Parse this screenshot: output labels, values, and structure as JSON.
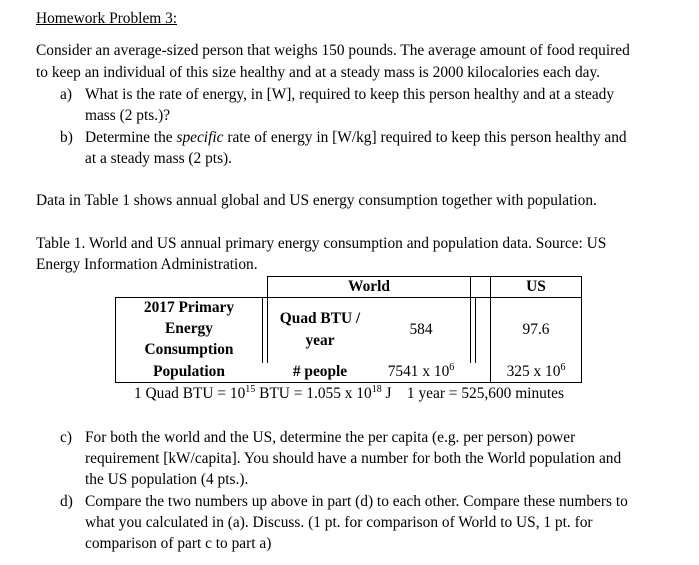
{
  "title": "Homework Problem 3:",
  "intro": {
    "line1": "Consider an average-sized person that weighs 150 pounds.  The average amount of food required",
    "line2": "to keep an individual of this size healthy and at a steady mass is 2000 kilocalories each day."
  },
  "part_a": {
    "letter": "a)",
    "line1": "What is the rate of energy, in [W], required to keep this person healthy and at a steady",
    "line2": "mass (2 pts.)?"
  },
  "part_b": {
    "letter": "b)",
    "line1_pre": "Determine the ",
    "line1_italic": "specific",
    "line1_post": " rate of energy in [W/kg] required to keep this person healthy and",
    "line2": "at a steady mass (2 pts)."
  },
  "data_sentence": "Data in Table 1 shows annual global and US energy consumption together with population.",
  "table_caption": {
    "line1": "Table 1.  World and US annual primary energy consumption and population data. Source: US",
    "line2": "Energy Information Administration."
  },
  "table": {
    "header_world": "World",
    "header_us": "US",
    "row1_label_line1": "2017 Primary",
    "row1_label_line2": "Energy",
    "row1_label_line3": "Consumption",
    "row1_unit_line1": "Quad BTU /",
    "row1_unit_line2": "year",
    "row1_world": "584",
    "row1_us": "97.6",
    "row2_label": "Population",
    "row2_unit": "# people",
    "row2_world_base": "7541 x 10",
    "row2_world_exp": "6",
    "row2_us_base": "325 x 10",
    "row2_us_exp": "6"
  },
  "conversion": {
    "part1": "1 Quad BTU = 10",
    "exp1": "15",
    "part2": " BTU = 1.055 x 10",
    "exp2": "18",
    "part3": " J    1 year = 525,600 minutes"
  },
  "part_c": {
    "letter": "c)",
    "line1": "For both the world and the US, determine the per capita (e.g. per person) power",
    "line2": "requirement [kW/capita].  You should have a number for both the World population and",
    "line3": "the US population (4 pts.)."
  },
  "part_d": {
    "letter": "d)",
    "line1": "Compare the two numbers up above in part (d) to each other.  Compare these numbers to",
    "line2": "what you calculated in (a).  Discuss.  (1 pt. for comparison of World to US, 1 pt. for",
    "line3": "comparison of part c to part a)"
  }
}
